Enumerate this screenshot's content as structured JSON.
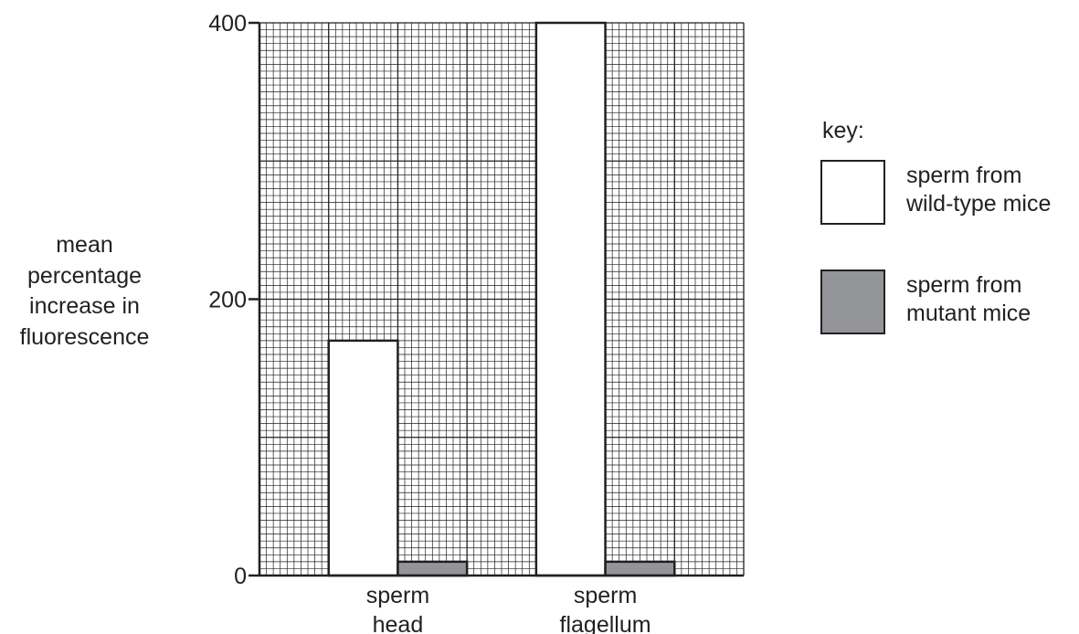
{
  "chart_data": {
    "type": "bar",
    "title": "",
    "xlabel": "",
    "ylabel_lines": [
      "mean",
      "percentage",
      "increase in",
      "fluorescence"
    ],
    "ylim": [
      0,
      400
    ],
    "yticks": [
      0,
      200,
      400
    ],
    "grid": true,
    "categories": [
      {
        "lines": [
          "sperm",
          "head"
        ]
      },
      {
        "lines": [
          "sperm",
          "flagellum"
        ]
      }
    ],
    "series": [
      {
        "name_lines": [
          "sperm from",
          "wild-type mice"
        ],
        "color": "#ffffff",
        "values": [
          170,
          400
        ]
      },
      {
        "name_lines": [
          "sperm from",
          "mutant mice"
        ],
        "color": "#939598",
        "values": [
          10,
          10
        ]
      }
    ],
    "legend": {
      "title": "key:",
      "placement": "right"
    }
  }
}
